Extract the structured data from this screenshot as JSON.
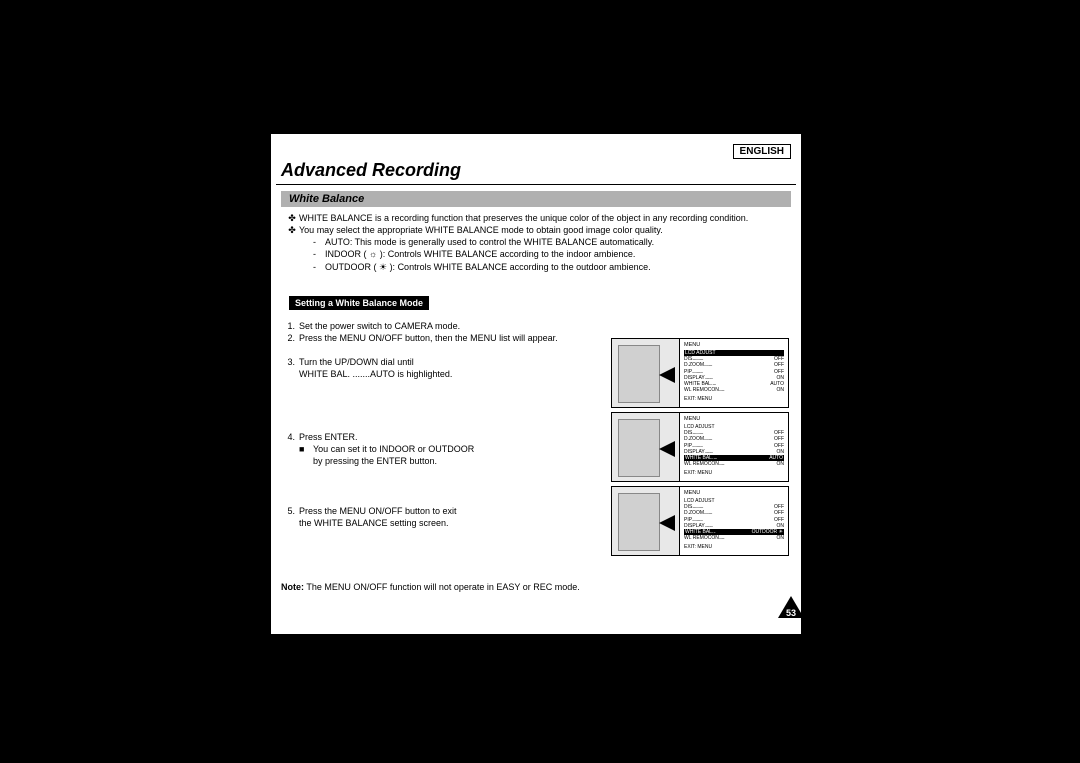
{
  "language": "ENGLISH",
  "chapter": "Advanced Recording",
  "section": "White Balance",
  "intro": {
    "b1": "WHITE BALANCE is a recording function that preserves the unique color of the object in any recording condition.",
    "b2": "You may select the appropriate WHITE BALANCE mode to obtain good image color quality.",
    "s1": "AUTO: This mode is generally used to control the WHITE BALANCE automatically.",
    "s2": "INDOOR ( ☼ ): Controls WHITE BALANCE according to the indoor ambience.",
    "s3": "OUTDOOR ( ☀ ): Controls WHITE BALANCE according to the outdoor ambience."
  },
  "subheader": "Setting a White Balance Mode",
  "steps": {
    "s1": "Set the power switch to CAMERA mode.",
    "s2": "Press the MENU ON/OFF button, then the MENU list will appear.",
    "s3a": "Turn the UP/DOWN dial until",
    "s3b": "WHITE BAL. .......AUTO is highlighted.",
    "s4a": "Press ENTER.",
    "s4b": "You can set it to INDOOR or OUTDOOR",
    "s4c": "by pressing the ENTER button.",
    "s5a": "Press the MENU ON/OFF button to exit",
    "s5b": "the WHITE BALANCE setting screen."
  },
  "note_label": "Note:",
  "note_text": "The MENU ON/OFF function will not operate in EASY or REC mode.",
  "page_number": "53",
  "menu": {
    "title": "MENU",
    "exit": "EXIT: MENU",
    "items": [
      {
        "k": "LCD ADJUST",
        "v": ""
      },
      {
        "k": "DIS",
        "v": "OFF"
      },
      {
        "k": "D.ZOOM",
        "v": "OFF"
      },
      {
        "k": "PIP",
        "v": "OFF"
      },
      {
        "k": "DISPLAY",
        "v": "ON"
      },
      {
        "k": "WHITE BAL.",
        "v": "AUTO"
      },
      {
        "k": "WL REMOCON",
        "v": "ON"
      }
    ],
    "panel1_hl": 0,
    "panel2_hl": 5,
    "panel3_hl": 5,
    "panel3_wb": "OUTDOOR ☀"
  }
}
